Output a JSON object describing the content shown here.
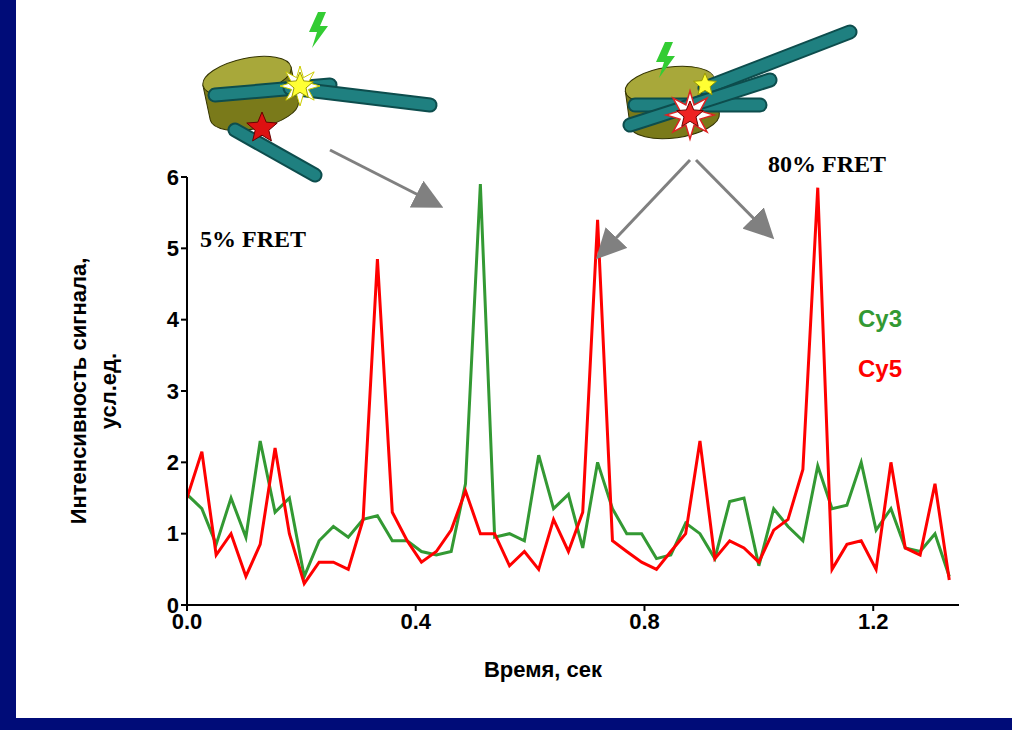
{
  "chart_data": {
    "type": "line",
    "x_label": "Время, сек",
    "y_label": [
      "Интенсивность сигнала,",
      "усл.ед."
    ],
    "x": [
      0,
      0.026,
      0.051,
      0.077,
      0.103,
      0.128,
      0.154,
      0.179,
      0.205,
      0.231,
      0.256,
      0.282,
      0.308,
      0.333,
      0.359,
      0.385,
      0.41,
      0.436,
      0.462,
      0.487,
      0.513,
      0.538,
      0.564,
      0.59,
      0.615,
      0.641,
      0.667,
      0.692,
      0.718,
      0.744,
      0.769,
      0.795,
      0.821,
      0.846,
      0.872,
      0.897,
      0.923,
      0.949,
      0.974,
      1.0,
      1.026,
      1.051,
      1.077,
      1.103,
      1.128,
      1.154,
      1.179,
      1.205,
      1.231,
      1.256,
      1.282,
      1.308,
      1.333
    ],
    "series": [
      {
        "name": "Cy3",
        "color": "#339933",
        "values": [
          1.55,
          1.35,
          0.85,
          1.5,
          0.95,
          2.3,
          1.3,
          1.5,
          0.4,
          0.9,
          1.1,
          0.95,
          1.2,
          1.25,
          0.9,
          0.9,
          0.75,
          0.7,
          0.75,
          1.7,
          5.9,
          0.95,
          1.0,
          0.9,
          2.1,
          1.35,
          1.55,
          0.8,
          2.0,
          1.35,
          1.0,
          1.0,
          0.65,
          0.7,
          1.15,
          1.0,
          0.65,
          1.45,
          1.5,
          0.55,
          1.35,
          1.1,
          0.9,
          1.95,
          1.35,
          1.4,
          2.0,
          1.05,
          1.35,
          0.8,
          0.75,
          1.0,
          0.4
        ]
      },
      {
        "name": "Cy5",
        "color": "#ff0000",
        "values": [
          1.5,
          2.15,
          0.7,
          1.0,
          0.4,
          0.85,
          2.2,
          1.0,
          0.3,
          0.6,
          0.6,
          0.5,
          1.2,
          4.85,
          1.3,
          0.9,
          0.6,
          0.75,
          1.05,
          1.6,
          1.0,
          1.0,
          0.55,
          0.75,
          0.5,
          1.2,
          0.75,
          1.3,
          5.4,
          0.9,
          0.75,
          0.6,
          0.5,
          0.75,
          1.0,
          2.3,
          0.65,
          0.9,
          0.8,
          0.6,
          1.05,
          1.2,
          1.9,
          5.85,
          0.5,
          0.85,
          0.9,
          0.5,
          2.0,
          0.8,
          0.7,
          1.7,
          0.35
        ]
      }
    ],
    "xlim": [
      0,
      1.35
    ],
    "xticks": [
      {
        "value": 0,
        "label": "0.0"
      },
      0.4,
      0.8,
      1.2
    ],
    "ylim": [
      0,
      6
    ],
    "yticks": [
      0,
      1,
      2,
      3,
      4,
      5,
      6
    ],
    "legend": "right",
    "grid": false,
    "annotations": [
      {
        "text": "5% FRET"
      },
      {
        "text": "80% FRET"
      }
    ]
  }
}
